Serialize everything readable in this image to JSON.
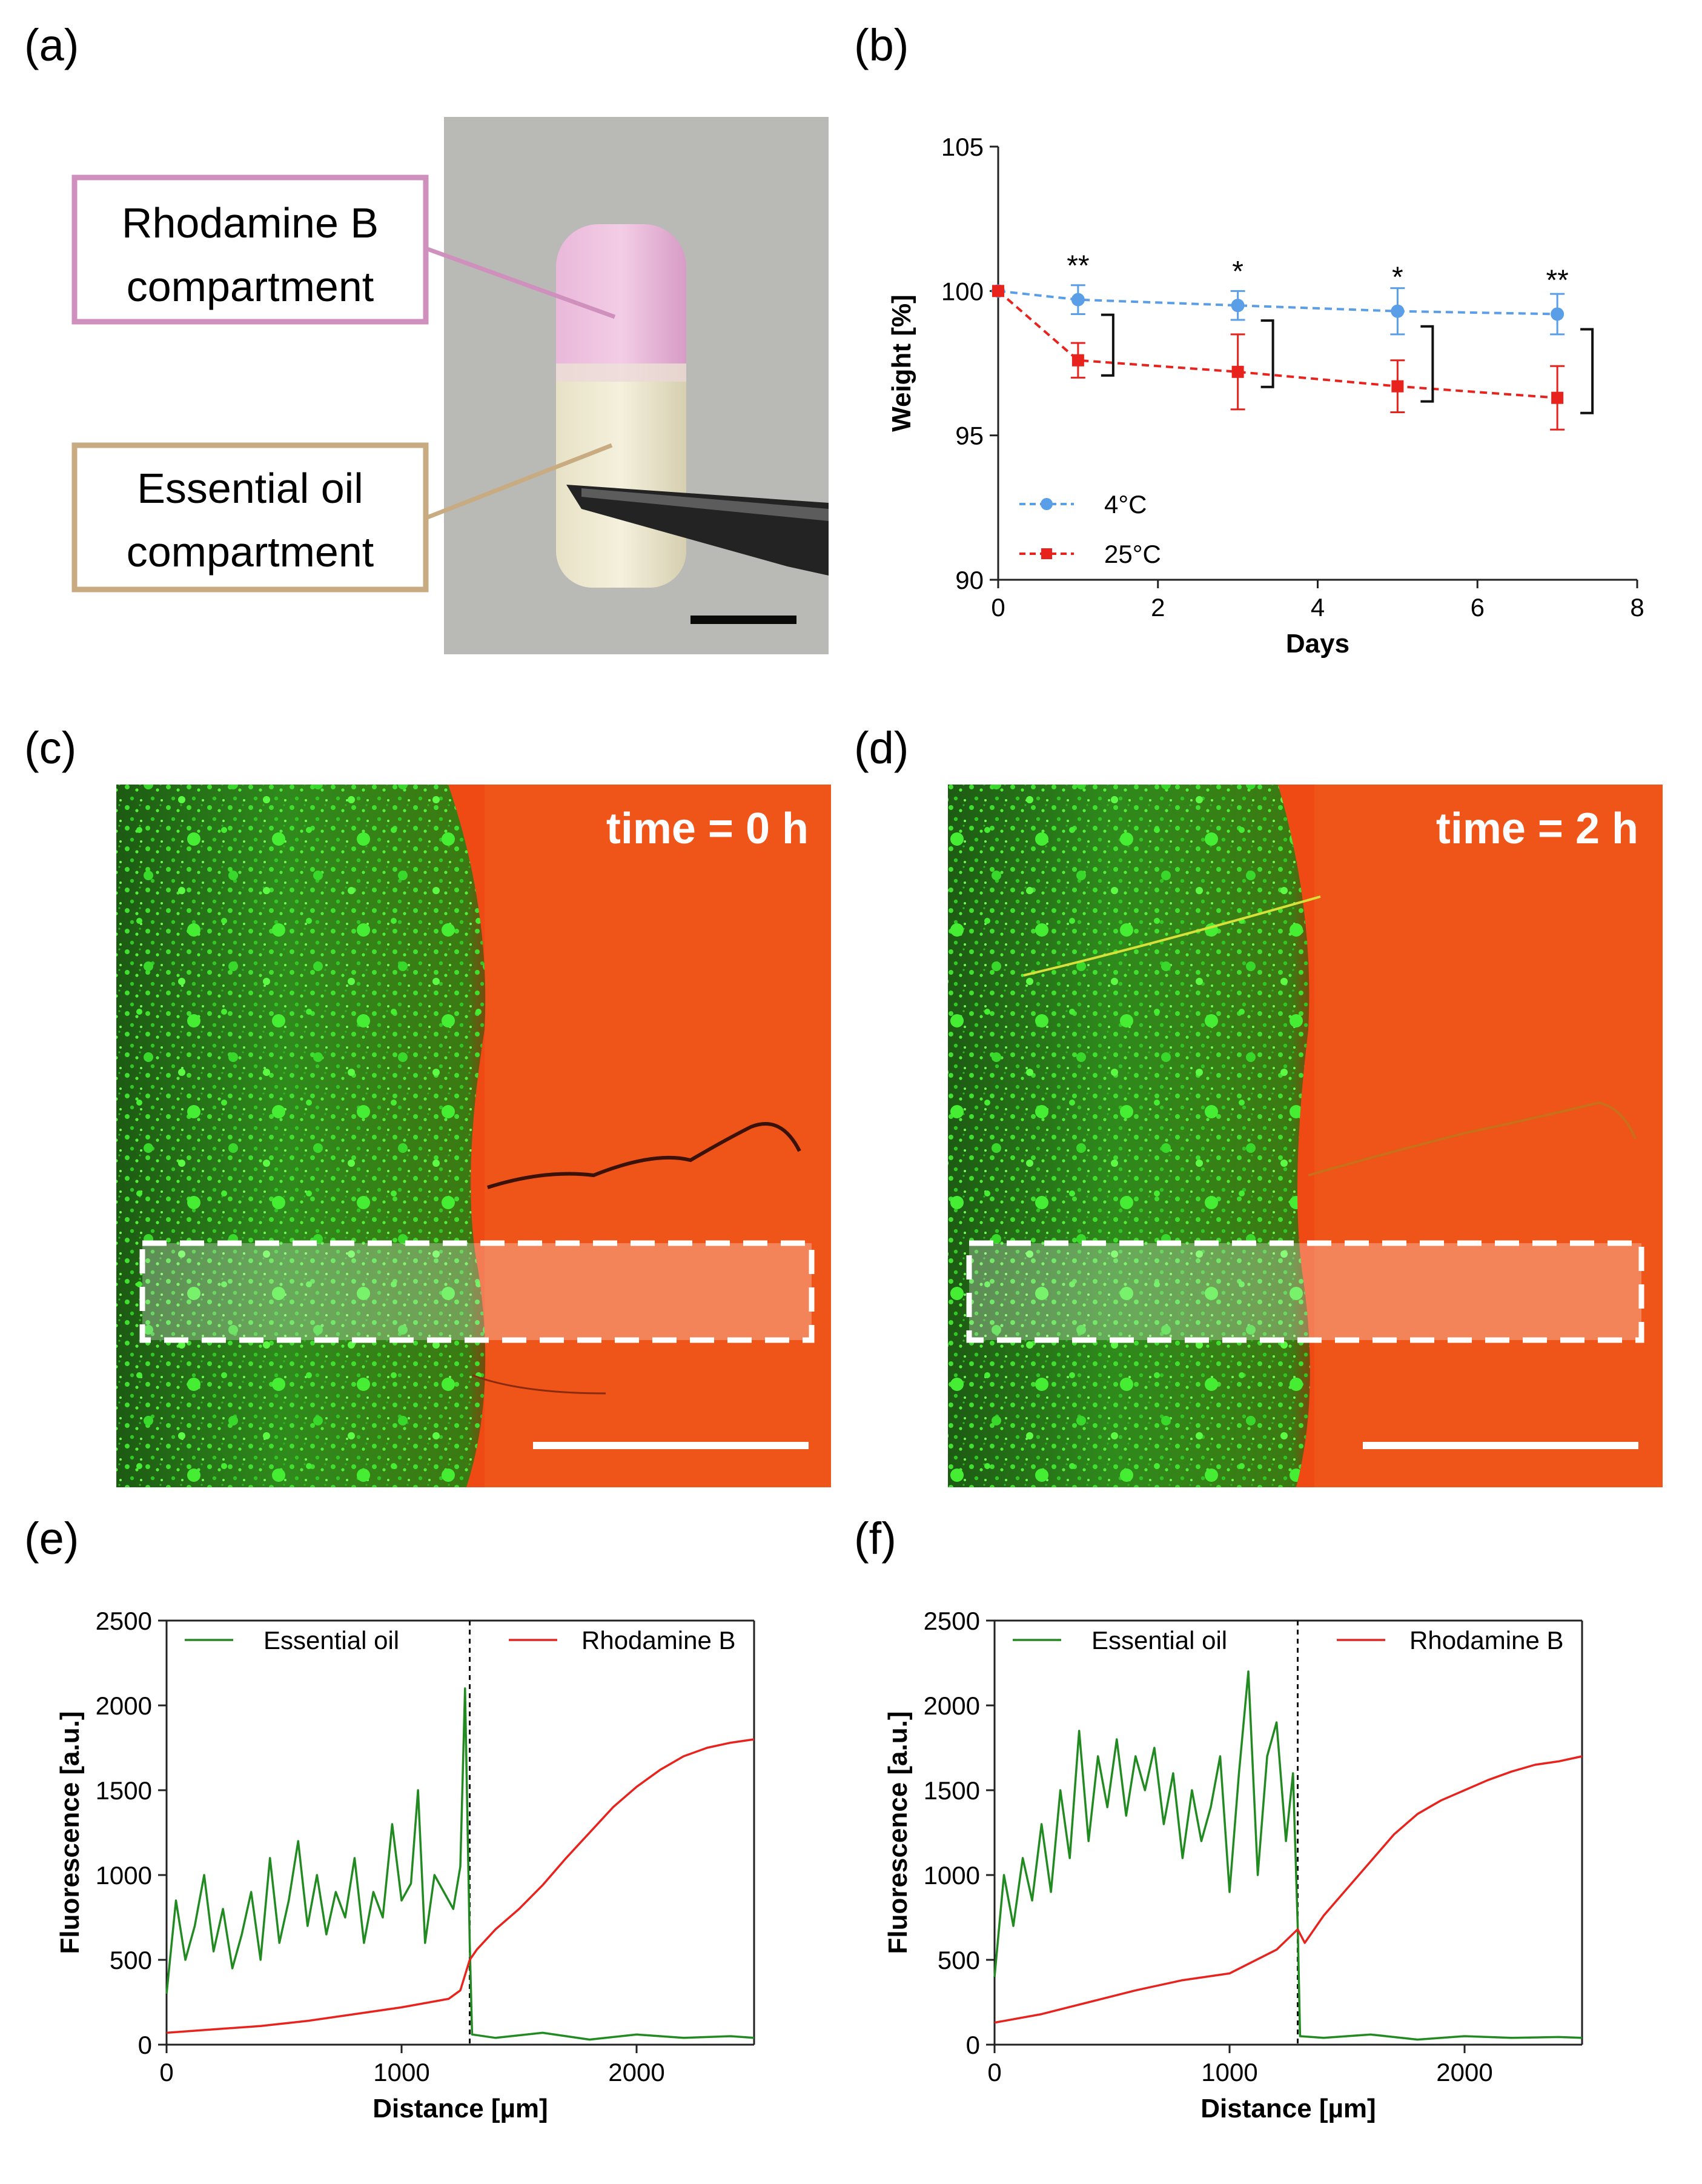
{
  "panels": {
    "a": {
      "label": "(a)",
      "annotation_top": [
        "Rhodamine B",
        "compartment"
      ],
      "annotation_bottom": [
        "Essential oil",
        "compartment"
      ]
    },
    "b": {
      "label": "(b)"
    },
    "c": {
      "label": "(c)",
      "time_label": "time = 0 h"
    },
    "d": {
      "label": "(d)",
      "time_label": "time = 2 h"
    },
    "e": {
      "label": "(e)"
    },
    "f": {
      "label": "(f)"
    }
  },
  "colors": {
    "series_4c": "#5a9ee8",
    "series_25c": "#e8221d",
    "essential_oil": "#218a21",
    "rhodamine": "#e8221d",
    "annotation_pink": "#cf90be",
    "annotation_tan": "#c8ab80"
  },
  "chart_data": [
    {
      "id": "b",
      "type": "line",
      "xlabel": "Days",
      "ylabel": "Weight [%]",
      "xlim": [
        0,
        8
      ],
      "ylim": [
        90,
        105
      ],
      "xticks": [
        0,
        2,
        4,
        6,
        8
      ],
      "yticks": [
        90,
        95,
        100,
        105
      ],
      "legend_position": "bottom-left",
      "series": [
        {
          "name": "4°C",
          "marker": "circle",
          "x": [
            0,
            1,
            3,
            5,
            7
          ],
          "y": [
            100,
            99.7,
            99.5,
            99.3,
            99.2
          ],
          "err": [
            0,
            0.5,
            0.5,
            0.8,
            0.7
          ]
        },
        {
          "name": "25°C",
          "marker": "square",
          "x": [
            0,
            1,
            3,
            5,
            7
          ],
          "y": [
            100,
            97.6,
            97.2,
            96.7,
            96.3
          ],
          "err": [
            0,
            0.6,
            1.3,
            0.9,
            1.1
          ]
        }
      ],
      "significance": [
        {
          "x": 1,
          "label": "**"
        },
        {
          "x": 3,
          "label": "*"
        },
        {
          "x": 5,
          "label": "*"
        },
        {
          "x": 7,
          "label": "**"
        }
      ]
    },
    {
      "id": "e",
      "type": "line",
      "xlabel": "Distance [µm]",
      "ylabel": "Fluorescence [a.u.]",
      "xlim": [
        0,
        2500
      ],
      "ylim": [
        0,
        2500
      ],
      "xticks": [
        0,
        1000,
        2000
      ],
      "yticks": [
        0,
        500,
        1000,
        1500,
        2000,
        2500
      ],
      "boundary_x": 1290,
      "legend_position": "top",
      "series": [
        {
          "name": "Essential oil",
          "x": [
            0,
            40,
            80,
            120,
            160,
            200,
            240,
            280,
            320,
            360,
            400,
            440,
            480,
            520,
            560,
            600,
            640,
            680,
            720,
            760,
            800,
            840,
            880,
            920,
            960,
            1000,
            1040,
            1070,
            1100,
            1140,
            1180,
            1220,
            1250,
            1270,
            1290,
            1300,
            1400,
            1600,
            1800,
            2000,
            2200,
            2400,
            2500
          ],
          "y": [
            300,
            850,
            500,
            700,
            1000,
            550,
            800,
            450,
            650,
            900,
            500,
            1100,
            600,
            850,
            1200,
            700,
            1000,
            650,
            900,
            750,
            1100,
            600,
            900,
            750,
            1300,
            850,
            950,
            1500,
            600,
            1000,
            900,
            800,
            1050,
            2100,
            600,
            60,
            40,
            70,
            30,
            60,
            40,
            50,
            40
          ]
        },
        {
          "name": "Rhodamine B",
          "x": [
            0,
            200,
            400,
            600,
            800,
            1000,
            1200,
            1250,
            1290,
            1320,
            1400,
            1500,
            1600,
            1700,
            1800,
            1900,
            2000,
            2100,
            2200,
            2300,
            2400,
            2500
          ],
          "y": [
            70,
            90,
            110,
            140,
            180,
            220,
            270,
            320,
            500,
            560,
            680,
            800,
            940,
            1100,
            1250,
            1400,
            1520,
            1620,
            1700,
            1750,
            1780,
            1800
          ]
        }
      ]
    },
    {
      "id": "f",
      "type": "line",
      "xlabel": "Distance [µm]",
      "ylabel": "Fluorescence [a.u.]",
      "xlim": [
        0,
        2500
      ],
      "ylim": [
        0,
        2500
      ],
      "xticks": [
        0,
        1000,
        2000
      ],
      "yticks": [
        0,
        500,
        1000,
        1500,
        2000,
        2500
      ],
      "boundary_x": 1290,
      "legend_position": "top",
      "series": [
        {
          "name": "Essential oil",
          "x": [
            0,
            40,
            80,
            120,
            160,
            200,
            240,
            280,
            320,
            360,
            400,
            440,
            480,
            520,
            560,
            600,
            640,
            680,
            720,
            760,
            800,
            840,
            880,
            920,
            960,
            1000,
            1040,
            1080,
            1120,
            1160,
            1200,
            1240,
            1270,
            1290,
            1300,
            1400,
            1600,
            1800,
            2000,
            2200,
            2400,
            2500
          ],
          "y": [
            400,
            1000,
            700,
            1100,
            850,
            1300,
            900,
            1500,
            1100,
            1850,
            1200,
            1700,
            1400,
            1800,
            1350,
            1700,
            1500,
            1750,
            1300,
            1600,
            1100,
            1500,
            1200,
            1400,
            1700,
            900,
            1600,
            2200,
            1000,
            1700,
            1900,
            1200,
            1600,
            700,
            50,
            40,
            60,
            30,
            50,
            40,
            45,
            40
          ]
        },
        {
          "name": "Rhodamine B",
          "x": [
            0,
            200,
            400,
            600,
            800,
            1000,
            1200,
            1290,
            1320,
            1400,
            1500,
            1600,
            1700,
            1800,
            1900,
            2000,
            2100,
            2200,
            2300,
            2400,
            2500
          ],
          "y": [
            130,
            180,
            250,
            320,
            380,
            420,
            560,
            680,
            600,
            760,
            920,
            1080,
            1240,
            1360,
            1440,
            1500,
            1560,
            1610,
            1650,
            1670,
            1700
          ]
        }
      ]
    }
  ]
}
